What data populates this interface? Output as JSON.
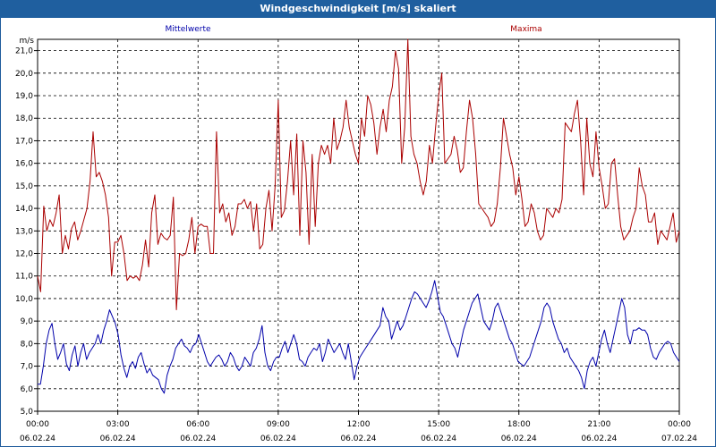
{
  "chart_data": {
    "type": "line",
    "title": "Windgeschwindigkeit [m/s] skaliert",
    "ylabel": "m/s",
    "ylim": [
      5.0,
      21.5
    ],
    "yticks": [
      "5,0",
      "6,0",
      "7,0",
      "8,0",
      "9,0",
      "10,0",
      "11,0",
      "12,0",
      "13,0",
      "14,0",
      "15,0",
      "16,0",
      "17,0",
      "18,0",
      "19,0",
      "20,0",
      "21,0"
    ],
    "xlim_hours": [
      0,
      24
    ],
    "xticks": [
      {
        "time": "00:00",
        "date": "06.02.24"
      },
      {
        "time": "03:00",
        "date": "06.02.24"
      },
      {
        "time": "06:00",
        "date": "06.02.24"
      },
      {
        "time": "09:00",
        "date": "06.02.24"
      },
      {
        "time": "12:00",
        "date": "06.02.24"
      },
      {
        "time": "15:00",
        "date": "06.02.24"
      },
      {
        "time": "18:00",
        "date": "06.02.24"
      },
      {
        "time": "21:00",
        "date": "06.02.24"
      },
      {
        "time": "00:00",
        "date": "07.02.24"
      }
    ],
    "grid": true,
    "series": [
      {
        "name": "Mittelwerte",
        "color": "#0000aa",
        "values": [
          6.2,
          6.2,
          7.0,
          8.0,
          8.6,
          8.9,
          8.0,
          7.3,
          7.6,
          8.0,
          7.1,
          6.8,
          7.5,
          7.9,
          7.0,
          7.6,
          8.0,
          7.3,
          7.6,
          7.8,
          8.0,
          8.4,
          8.0,
          8.6,
          9.0,
          9.5,
          9.2,
          8.9,
          8.4,
          7.5,
          6.9,
          6.5,
          7.0,
          7.2,
          6.9,
          7.4,
          7.6,
          7.1,
          6.7,
          6.9,
          6.6,
          6.5,
          6.4,
          6.0,
          5.8,
          6.6,
          7.0,
          7.3,
          7.8,
          8.0,
          8.2,
          7.9,
          7.8,
          7.6,
          7.9,
          8.0,
          8.4,
          8.0,
          7.6,
          7.2,
          7.0,
          7.2,
          7.4,
          7.5,
          7.3,
          7.0,
          7.2,
          7.6,
          7.4,
          7.0,
          6.8,
          7.0,
          7.4,
          7.2,
          7.0,
          7.6,
          7.8,
          8.2,
          8.8,
          7.6,
          7.0,
          6.8,
          7.2,
          7.4,
          7.4,
          7.8,
          8.1,
          7.6,
          8.0,
          8.4,
          8.0,
          7.3,
          7.2,
          7.0,
          7.4,
          7.6,
          7.8,
          7.7,
          8.0,
          7.2,
          7.6,
          8.2,
          7.9,
          7.6,
          7.8,
          8.0,
          7.6,
          7.3,
          8.0,
          7.2,
          6.4,
          7.0,
          7.4,
          7.6,
          7.8,
          8.0,
          8.2,
          8.4,
          8.6,
          8.8,
          9.6,
          9.2,
          9.0,
          8.2,
          8.6,
          9.0,
          8.6,
          8.8,
          9.2,
          9.6,
          10.0,
          10.3,
          10.2,
          10.0,
          9.8,
          9.6,
          9.9,
          10.3,
          10.8,
          10.1,
          9.4,
          9.2,
          8.8,
          8.4,
          8.0,
          7.8,
          7.4,
          8.0,
          8.6,
          9.0,
          9.4,
          9.8,
          10.0,
          10.2,
          9.6,
          9.0,
          8.8,
          8.6,
          9.0,
          9.6,
          9.8,
          9.4,
          9.0,
          8.6,
          8.2,
          8.0,
          7.6,
          7.2,
          7.1,
          7.0,
          7.2,
          7.4,
          7.8,
          8.2,
          8.6,
          9.0,
          9.6,
          9.8,
          9.6,
          9.0,
          8.6,
          8.2,
          8.0,
          7.6,
          7.8,
          7.4,
          7.2,
          7.0,
          6.8,
          6.5,
          6.0,
          6.8,
          7.2,
          7.4,
          7.0,
          7.6,
          8.2,
          8.6,
          8.0,
          7.6,
          8.2,
          8.8,
          9.4,
          10.0,
          9.6,
          8.4,
          8.0,
          8.6,
          8.6,
          8.7,
          8.6,
          8.6,
          8.4,
          7.8,
          7.4,
          7.3,
          7.6,
          7.8,
          8.0,
          8.1,
          8.0,
          7.6,
          7.4,
          7.2
        ]
      },
      {
        "name": "Maxima",
        "color": "#aa0000",
        "values": [
          11.0,
          10.3,
          14.1,
          13.0,
          13.5,
          13.2,
          13.8,
          14.6,
          12.0,
          12.8,
          12.2,
          13.1,
          13.4,
          12.6,
          13.0,
          13.5,
          14.0,
          15.2,
          17.4,
          15.4,
          15.6,
          15.2,
          14.6,
          13.6,
          11.0,
          12.5,
          12.5,
          12.8,
          12.0,
          10.8,
          11.0,
          10.9,
          11.0,
          10.8,
          11.5,
          12.6,
          11.4,
          13.8,
          14.6,
          12.4,
          12.9,
          12.7,
          12.6,
          12.8,
          14.5,
          9.5,
          12.0,
          11.9,
          12.0,
          12.6,
          13.6,
          12.0,
          13.2,
          13.3,
          13.2,
          13.2,
          12.0,
          12.0,
          17.4,
          13.8,
          14.2,
          13.4,
          13.8,
          12.8,
          13.2,
          14.2,
          14.2,
          14.4,
          14.0,
          14.3,
          13.0,
          14.2,
          12.2,
          12.4,
          14.0,
          14.8,
          13.0,
          15.0,
          18.8,
          13.6,
          13.9,
          15.2,
          17.0,
          14.6,
          17.3,
          12.8,
          17.0,
          15.6,
          12.4,
          16.4,
          13.2,
          16.0,
          16.8,
          16.4,
          16.8,
          16.0,
          18.0,
          16.6,
          17.0,
          17.6,
          18.8,
          17.6,
          17.0,
          16.4,
          16.0,
          18.0,
          17.2,
          19.0,
          18.6,
          17.8,
          16.4,
          17.6,
          18.4,
          17.4,
          18.8,
          19.4,
          21.0,
          20.2,
          16.0,
          17.6,
          21.5,
          17.2,
          16.4,
          16.0,
          15.2,
          14.6,
          15.2,
          16.8,
          16.0,
          17.6,
          19.0,
          20.0,
          16.0,
          16.2,
          16.4,
          17.2,
          16.6,
          15.6,
          15.8,
          17.4,
          18.8,
          18.0,
          16.4,
          14.2,
          14.0,
          13.8,
          13.6,
          13.2,
          13.4,
          14.2,
          15.8,
          18.0,
          17.2,
          16.4,
          15.8,
          14.6,
          15.4,
          14.4,
          13.2,
          13.4,
          14.2,
          13.8,
          13.0,
          12.6,
          12.8,
          14.0,
          13.8,
          13.6,
          14.0,
          13.8,
          14.4,
          17.8,
          17.6,
          17.4,
          18.2,
          18.8,
          17.0,
          14.6,
          18.0,
          16.0,
          15.4,
          17.4,
          15.8,
          15.0,
          14.0,
          14.2,
          16.0,
          16.2,
          14.6,
          13.2,
          12.6,
          12.8,
          13.0,
          13.6,
          14.0,
          15.8,
          15.0,
          14.6,
          13.4,
          13.4,
          13.8,
          12.4,
          13.0,
          12.8,
          12.6,
          13.2,
          13.8,
          12.5,
          13.0
        ]
      }
    ]
  }
}
